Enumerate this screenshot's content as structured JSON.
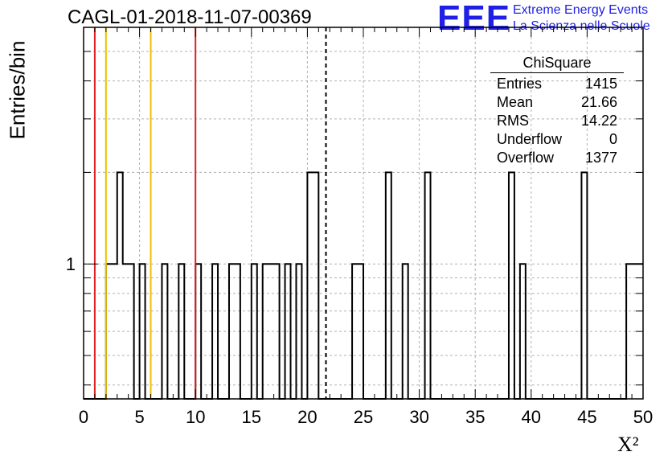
{
  "title": "CAGL-01-2018-11-07-00369",
  "logo": {
    "mark": "EEE",
    "line1": "Extreme Energy Events",
    "line2": "La Scienza nelle Scuole",
    "color": "#1f1fe6"
  },
  "stats_box": {
    "title": "ChiSquare",
    "rows": [
      {
        "label": "Entries",
        "value": "1415"
      },
      {
        "label": "Mean",
        "value": "21.66"
      },
      {
        "label": "RMS",
        "value": "14.22"
      },
      {
        "label": "Underflow",
        "value": "0"
      },
      {
        "label": "Overflow",
        "value": "1377"
      }
    ]
  },
  "chart_data": {
    "type": "histogram",
    "title": "CAGL-01-2018-11-07-00369",
    "xlabel": "X²",
    "ylabel": "Entries/bin",
    "xlim": [
      0,
      50
    ],
    "ylim": [
      0.36,
      6
    ],
    "y_scale": "log",
    "grid": true,
    "bin_width": 0.5,
    "x_ticks": [
      0,
      5,
      10,
      15,
      20,
      25,
      30,
      35,
      40,
      45,
      50
    ],
    "y_tick_labels": [
      1
    ],
    "bins": [
      {
        "x": 2.0,
        "count": 1
      },
      {
        "x": 2.5,
        "count": 1
      },
      {
        "x": 3.0,
        "count": 2
      },
      {
        "x": 3.5,
        "count": 1
      },
      {
        "x": 4.0,
        "count": 1
      },
      {
        "x": 5.0,
        "count": 1
      },
      {
        "x": 7.0,
        "count": 1
      },
      {
        "x": 8.5,
        "count": 1
      },
      {
        "x": 10.0,
        "count": 1
      },
      {
        "x": 11.5,
        "count": 1
      },
      {
        "x": 13.0,
        "count": 1
      },
      {
        "x": 13.5,
        "count": 1
      },
      {
        "x": 15.0,
        "count": 1
      },
      {
        "x": 16.0,
        "count": 1
      },
      {
        "x": 16.5,
        "count": 1
      },
      {
        "x": 17.0,
        "count": 1
      },
      {
        "x": 18.0,
        "count": 1
      },
      {
        "x": 19.0,
        "count": 1
      },
      {
        "x": 20.0,
        "count": 2
      },
      {
        "x": 20.5,
        "count": 2
      },
      {
        "x": 24.0,
        "count": 1
      },
      {
        "x": 24.5,
        "count": 1
      },
      {
        "x": 27.0,
        "count": 2
      },
      {
        "x": 28.5,
        "count": 1
      },
      {
        "x": 30.5,
        "count": 2
      },
      {
        "x": 38.0,
        "count": 2
      },
      {
        "x": 39.0,
        "count": 1
      },
      {
        "x": 44.5,
        "count": 2
      },
      {
        "x": 48.5,
        "count": 1
      },
      {
        "x": 49.0,
        "count": 1
      },
      {
        "x": 49.5,
        "count": 1
      }
    ],
    "reference_lines": [
      {
        "x": 1.0,
        "color": "#e02020",
        "style": "solid"
      },
      {
        "x": 2.0,
        "color": "#f0c000",
        "style": "solid"
      },
      {
        "x": 6.0,
        "color": "#f0c000",
        "style": "solid"
      },
      {
        "x": 10.0,
        "color": "#e02020",
        "style": "solid"
      },
      {
        "x": 21.66,
        "color": "#000000",
        "style": "dashed"
      }
    ]
  }
}
